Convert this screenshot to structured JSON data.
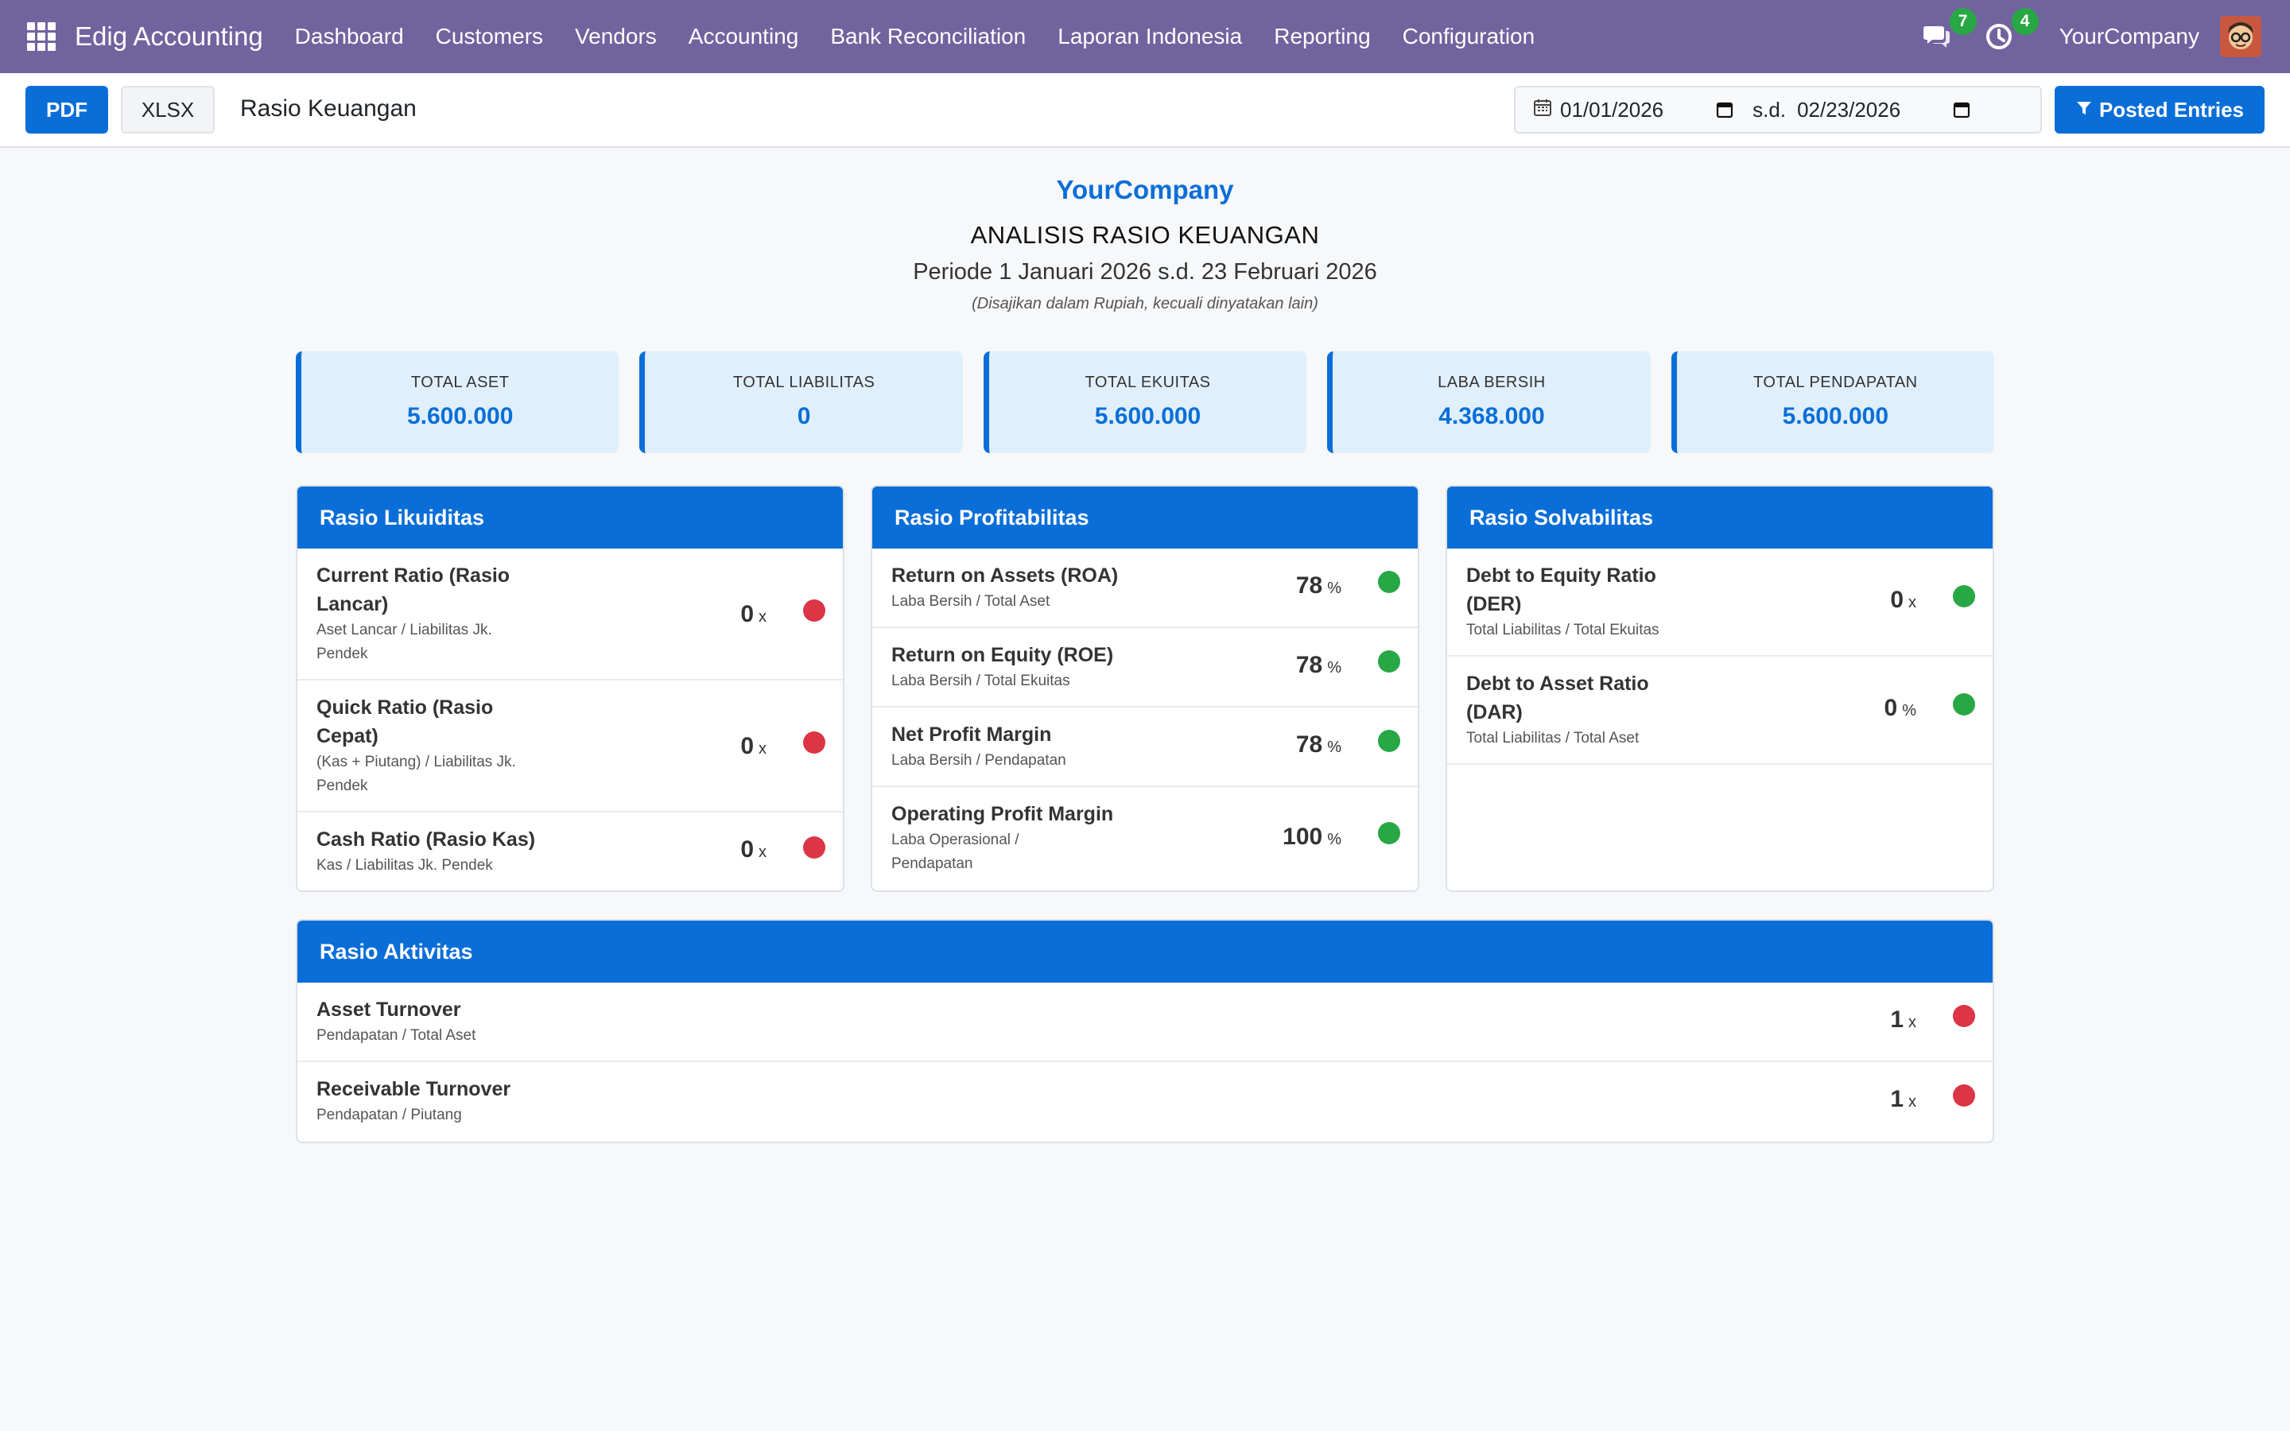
{
  "navbar": {
    "brand": "Edig Accounting",
    "menu": [
      "Dashboard",
      "Customers",
      "Vendors",
      "Accounting",
      "Bank Reconciliation",
      "Laporan Indonesia",
      "Reporting",
      "Configuration"
    ],
    "messages_count": "7",
    "activities_count": "4",
    "company": "YourCompany",
    "background_color": "#71639e"
  },
  "toolbar": {
    "pdf_label": "PDF",
    "xlsx_label": "XLSX",
    "title": "Rasio Keuangan",
    "date_from": "01/01/2026",
    "date_separator": "s.d.",
    "date_to": "02/23/2026",
    "filter_label": "Posted Entries"
  },
  "report": {
    "company": "YourCompany",
    "title": "ANALISIS RASIO KEUANGAN",
    "period": "Periode 1 Januari 2026 s.d. 23 Februari 2026",
    "note": "(Disajikan dalam Rupiah, kecuali dinyatakan lain)"
  },
  "summary": [
    {
      "label": "TOTAL ASET",
      "value": "5.600.000"
    },
    {
      "label": "TOTAL LIABILITAS",
      "value": "0"
    },
    {
      "label": "TOTAL EKUITAS",
      "value": "5.600.000"
    },
    {
      "label": "LABA BERSIH",
      "value": "4.368.000"
    },
    {
      "label": "TOTAL PENDAPATAN",
      "value": "5.600.000"
    }
  ],
  "likuiditas": {
    "title": "Rasio Likuiditas",
    "rows": [
      {
        "name_1": "Current Ratio (Rasio",
        "name_2": "Lancar)",
        "formula_1": "Aset Lancar / Liabilitas Jk.",
        "formula_2": "Pendek",
        "value": "0",
        "unit": "x",
        "status": "red"
      },
      {
        "name_1": "Quick Ratio (Rasio",
        "name_2": "Cepat)",
        "formula_1": "(Kas + Piutang) / Liabilitas Jk.",
        "formula_2": "Pendek",
        "value": "0",
        "unit": "x",
        "status": "red"
      },
      {
        "name_1": "Cash Ratio (Rasio Kas)",
        "formula_1": "Kas / Liabilitas Jk. Pendek",
        "value": "0",
        "unit": "x",
        "status": "red"
      }
    ]
  },
  "profitabilitas": {
    "title": "Rasio Profitabilitas",
    "rows": [
      {
        "name_1": "Return on Assets (ROA)",
        "formula_1": "Laba Bersih / Total Aset",
        "value": "78",
        "unit": "%",
        "status": "green"
      },
      {
        "name_1": "Return on Equity (ROE)",
        "formula_1": "Laba Bersih / Total Ekuitas",
        "value": "78",
        "unit": "%",
        "status": "green"
      },
      {
        "name_1": "Net Profit Margin",
        "formula_1": "Laba Bersih / Pendapatan",
        "value": "78",
        "unit": "%",
        "status": "green"
      },
      {
        "name_1": "Operating Profit Margin",
        "formula_1": "Laba Operasional /",
        "formula_2": "Pendapatan",
        "value": "100",
        "unit": "%",
        "status": "green"
      }
    ]
  },
  "solvabilitas": {
    "title": "Rasio Solvabilitas",
    "rows": [
      {
        "name_1": "Debt to Equity Ratio",
        "name_2": "(DER)",
        "formula_1": "Total Liabilitas / Total Ekuitas",
        "value": "0",
        "unit": "x",
        "status": "green"
      },
      {
        "name_1": "Debt to Asset Ratio",
        "name_2": "(DAR)",
        "formula_1": "Total Liabilitas / Total Aset",
        "value": "0",
        "unit": "%",
        "status": "green"
      }
    ]
  },
  "aktivitas": {
    "title": "Rasio Aktivitas",
    "rows": [
      {
        "name_1": "Asset Turnover",
        "formula_1": "Pendapatan / Total Aset",
        "value": "1",
        "unit": "x",
        "status": "red"
      },
      {
        "name_1": "Receivable Turnover",
        "formula_1": "Pendapatan / Piutang",
        "value": "1",
        "unit": "x",
        "status": "red"
      }
    ]
  },
  "colors": {
    "accent": "#0a6ed8",
    "good": "#28a745",
    "bad": "#dc3545"
  }
}
